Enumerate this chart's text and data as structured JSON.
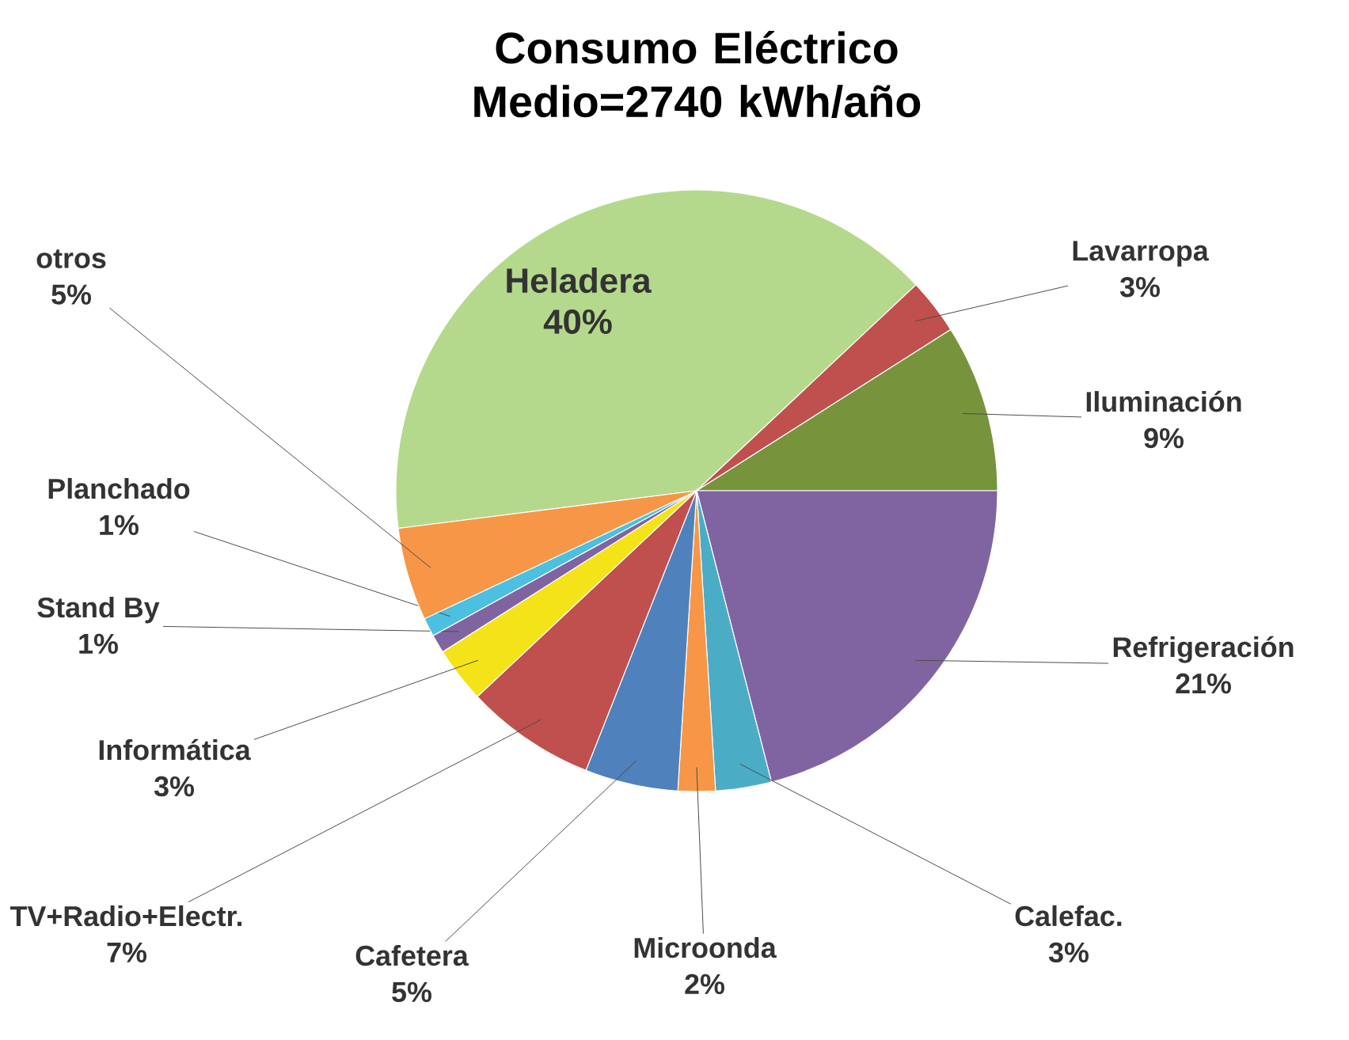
{
  "chart_data": {
    "type": "pie",
    "title": "Consumo Eléctrico Medio=2740 kWh/año",
    "categories": [
      "Heladera",
      "Lavarropa",
      "Iluminación",
      "Refrigeración",
      "Calefac.",
      "Microonda",
      "Cafetera",
      "TV+Radio+Electr.",
      "Informática",
      "Stand By",
      "Planchado",
      "otros"
    ],
    "values": [
      40,
      3,
      9,
      21,
      3,
      2,
      5,
      7,
      3,
      1,
      1,
      5
    ],
    "colors": [
      "#b5d98c",
      "#c0504d",
      "#77933c",
      "#8064a2",
      "#4bacc6",
      "#f79646",
      "#4f81bd",
      "#c0504d",
      "#f5e31a",
      "#8064a2",
      "#4bc0e0",
      "#f79646"
    ],
    "value_labels": [
      "40%",
      "3%",
      "9%",
      "21%",
      "3%",
      "2%",
      "5%",
      "7%",
      "3%",
      "1%",
      "1%",
      "5%"
    ]
  }
}
